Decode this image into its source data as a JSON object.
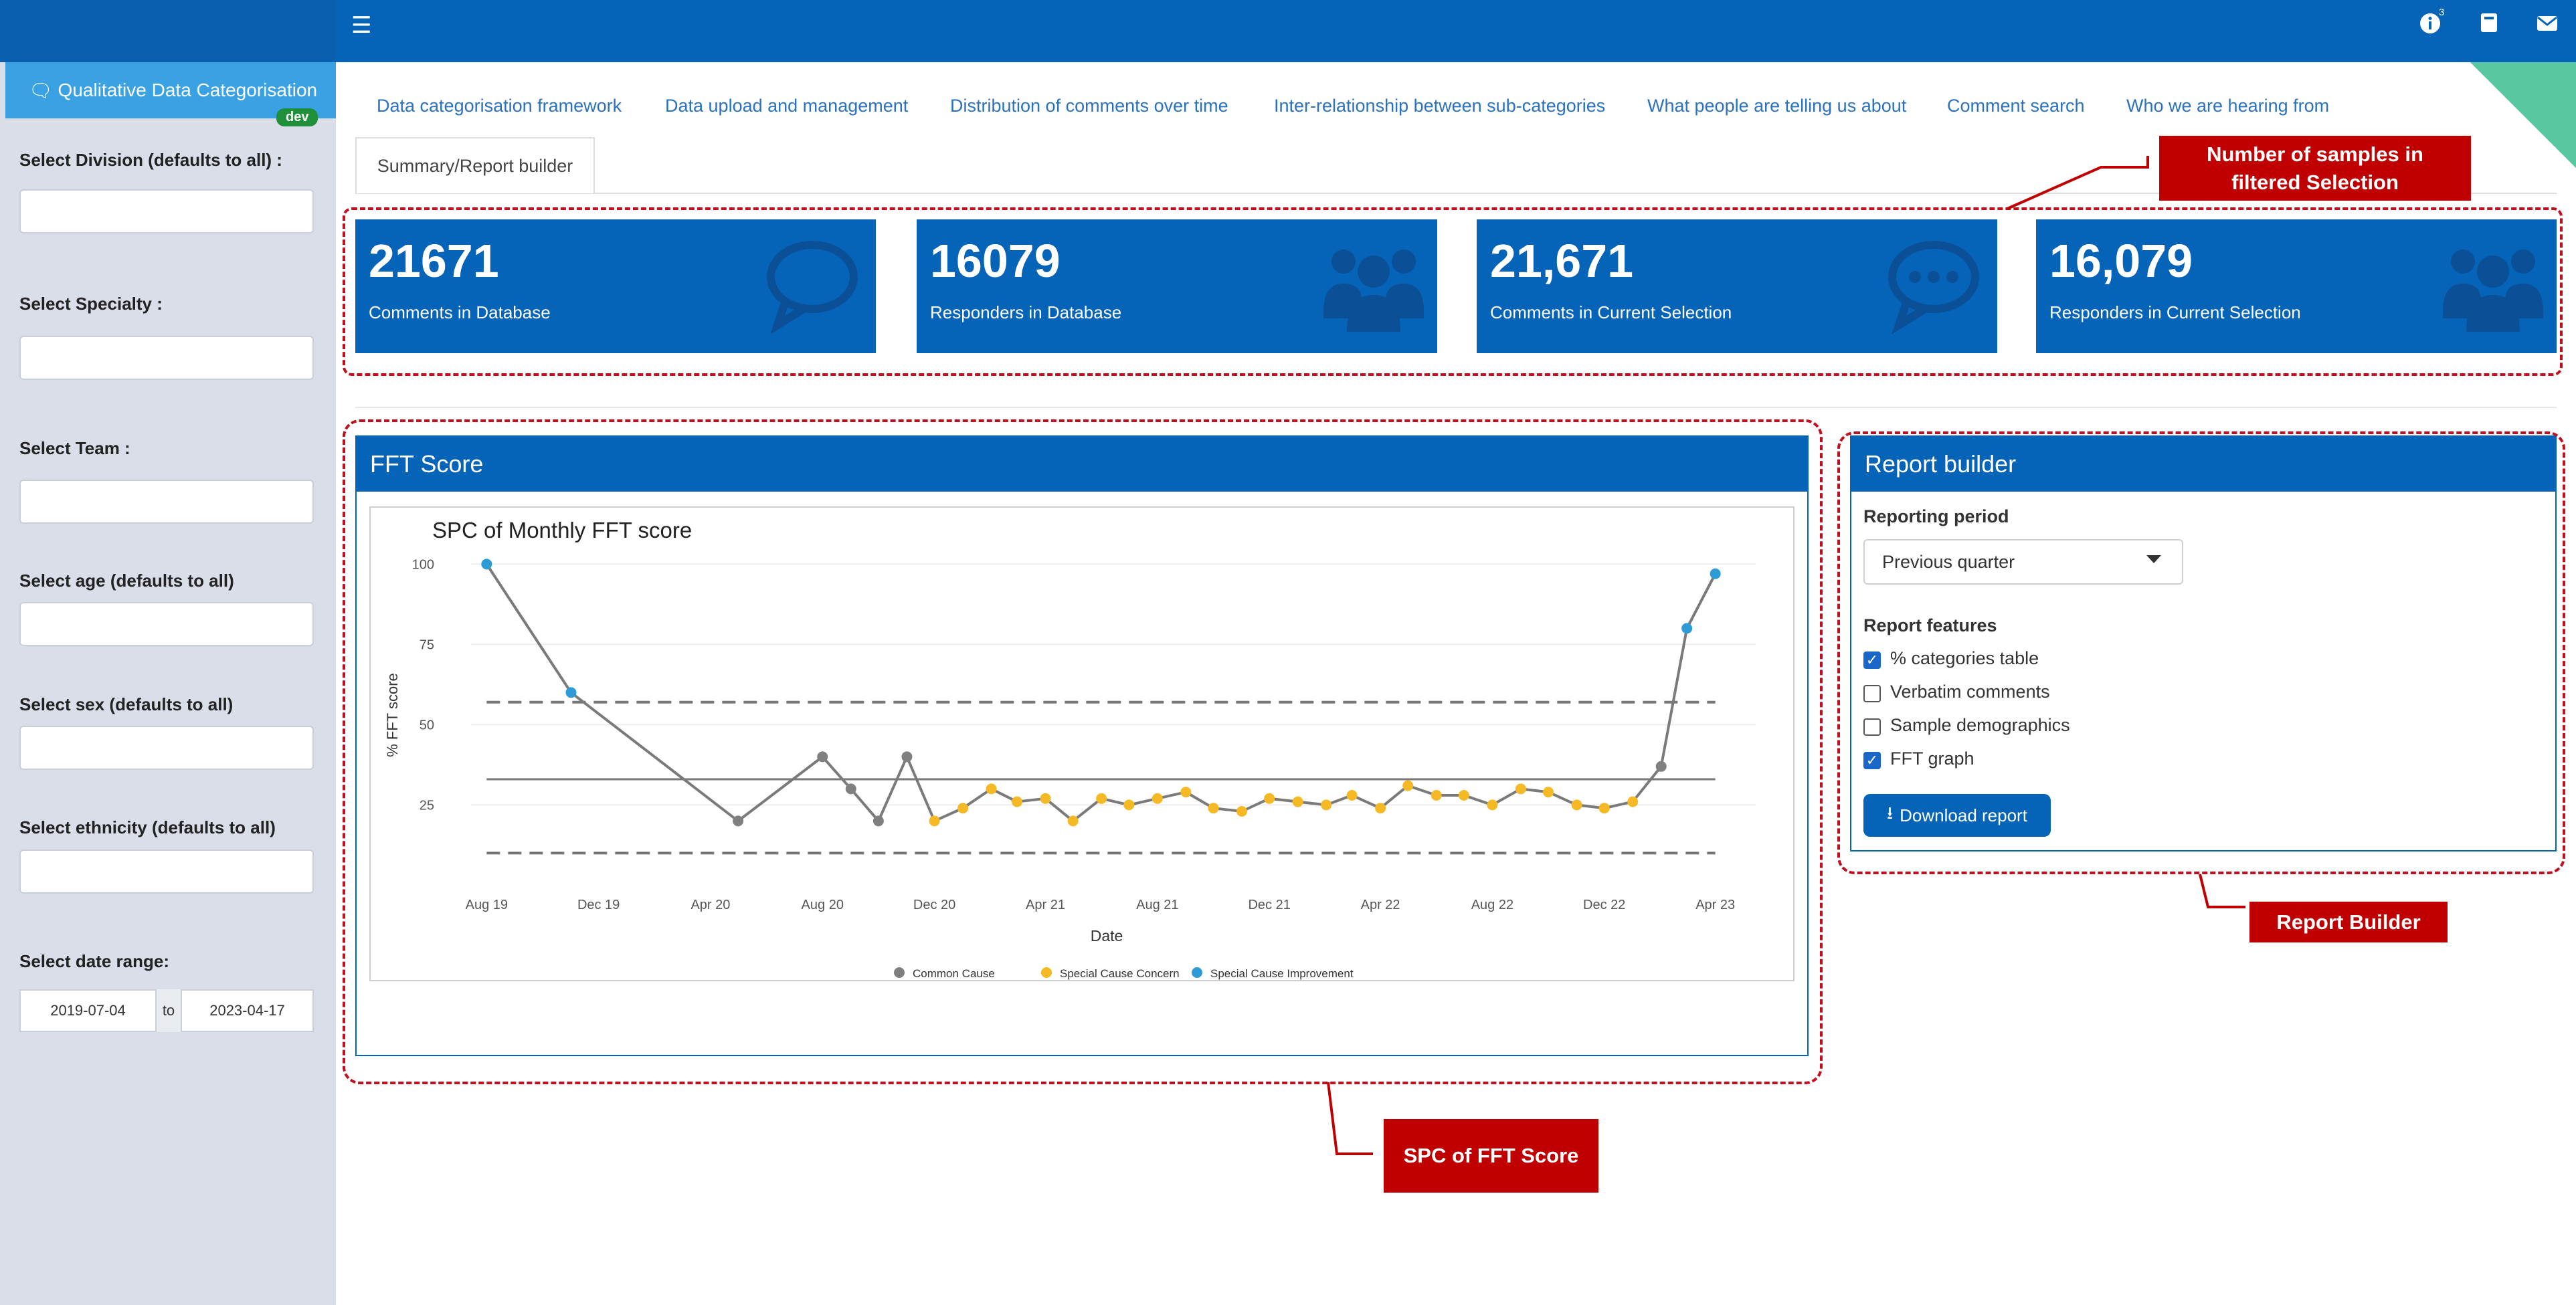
{
  "header": {
    "notification_count": "3"
  },
  "sidebar": {
    "app_title": "Qualitative Data Categorisation",
    "dev_badge": "dev",
    "filters": [
      {
        "label": "Select Division (defaults to all) :"
      },
      {
        "label": "Select Specialty :"
      },
      {
        "label": "Select Team :"
      },
      {
        "label": "Select age (defaults to all)"
      },
      {
        "label": "Select sex (defaults to all)"
      },
      {
        "label": "Select ethnicity (defaults to all)"
      }
    ],
    "date_range": {
      "label": "Select date range:",
      "start": "2019-07-04",
      "to": "to",
      "end": "2023-04-17"
    }
  },
  "tabs": [
    "Data categorisation framework",
    "Data upload and management",
    "Distribution of comments over time",
    "Inter-relationship between sub-categories",
    "What people are telling us about",
    "Comment search",
    "Who we are hearing from",
    "Summary/Report builder"
  ],
  "value_boxes": [
    {
      "value": "21671",
      "label": "Comments in Database",
      "icon": "comment-icon"
    },
    {
      "value": "16079",
      "label": "Responders in Database",
      "icon": "users-icon"
    },
    {
      "value": "21,671",
      "label": "Comments in Current Selection",
      "icon": "comment-dots-icon"
    },
    {
      "value": "16,079",
      "label": "Responders in Current Selection",
      "icon": "users-icon"
    }
  ],
  "fft_panel": {
    "title": "FFT Score"
  },
  "chart_data": {
    "type": "line",
    "title": "SPC of Monthly FFT score",
    "xlabel": "Date",
    "ylabel": "% FFT score",
    "x_ticks": [
      "Aug 19",
      "Dec 19",
      "Apr 20",
      "Aug 20",
      "Dec 20",
      "Apr 21",
      "Aug 21",
      "Dec 21",
      "Apr 22",
      "Aug 22",
      "Dec 22",
      "Apr 23"
    ],
    "y_ticks": [
      25,
      50,
      75,
      100
    ],
    "ylim": [
      3,
      103
    ],
    "center_line": 33,
    "upper_limit": 57,
    "lower_limit": 10,
    "legend": [
      "Common Cause",
      "Special Cause Concern",
      "Special Cause Improvement"
    ],
    "colors": {
      "common": "#808080",
      "concern": "#f5b925",
      "improvement": "#2e9bd6",
      "line": "#7a7a7a"
    },
    "points": [
      {
        "date": "2019-08",
        "y": 100,
        "class": "improvement"
      },
      {
        "date": "2019-11",
        "y": 60,
        "class": "improvement"
      },
      {
        "date": "2020-05",
        "y": 20,
        "class": "common"
      },
      {
        "date": "2020-08",
        "y": 40,
        "class": "common"
      },
      {
        "date": "2020-09",
        "y": 30,
        "class": "common"
      },
      {
        "date": "2020-10",
        "y": 20,
        "class": "common"
      },
      {
        "date": "2020-11",
        "y": 40,
        "class": "common"
      },
      {
        "date": "2020-12",
        "y": 20,
        "class": "concern"
      },
      {
        "date": "2021-01",
        "y": 24,
        "class": "concern"
      },
      {
        "date": "2021-02",
        "y": 30,
        "class": "concern"
      },
      {
        "date": "2021-03",
        "y": 26,
        "class": "concern"
      },
      {
        "date": "2021-04",
        "y": 27,
        "class": "concern"
      },
      {
        "date": "2021-05",
        "y": 20,
        "class": "concern"
      },
      {
        "date": "2021-06",
        "y": 27,
        "class": "concern"
      },
      {
        "date": "2021-07",
        "y": 25,
        "class": "concern"
      },
      {
        "date": "2021-08",
        "y": 27,
        "class": "concern"
      },
      {
        "date": "2021-09",
        "y": 29,
        "class": "concern"
      },
      {
        "date": "2021-10",
        "y": 24,
        "class": "concern"
      },
      {
        "date": "2021-11",
        "y": 23,
        "class": "concern"
      },
      {
        "date": "2021-12",
        "y": 27,
        "class": "concern"
      },
      {
        "date": "2022-01",
        "y": 26,
        "class": "concern"
      },
      {
        "date": "2022-02",
        "y": 25,
        "class": "concern"
      },
      {
        "date": "2022-03",
        "y": 28,
        "class": "concern"
      },
      {
        "date": "2022-04",
        "y": 24,
        "class": "concern"
      },
      {
        "date": "2022-05",
        "y": 31,
        "class": "concern"
      },
      {
        "date": "2022-06",
        "y": 28,
        "class": "concern"
      },
      {
        "date": "2022-07",
        "y": 28,
        "class": "concern"
      },
      {
        "date": "2022-08",
        "y": 25,
        "class": "concern"
      },
      {
        "date": "2022-09",
        "y": 30,
        "class": "concern"
      },
      {
        "date": "2022-10",
        "y": 29,
        "class": "concern"
      },
      {
        "date": "2022-11",
        "y": 25,
        "class": "concern"
      },
      {
        "date": "2022-12",
        "y": 24,
        "class": "concern"
      },
      {
        "date": "2023-01",
        "y": 26,
        "class": "concern"
      },
      {
        "date": "2023-02",
        "y": 37,
        "class": "common"
      },
      {
        "date": "2023-03",
        "y": 80,
        "class": "improvement"
      },
      {
        "date": "2023-04",
        "y": 97,
        "class": "improvement"
      }
    ]
  },
  "report_builder": {
    "title": "Report builder",
    "period_label": "Reporting period",
    "period_value": "Previous quarter",
    "features_label": "Report features",
    "features": [
      {
        "label": "% categories table",
        "checked": true
      },
      {
        "label": "Verbatim comments",
        "checked": false
      },
      {
        "label": "Sample demographics",
        "checked": false
      },
      {
        "label": "FFT graph",
        "checked": true
      }
    ],
    "download_label": "Download report"
  },
  "annotations": {
    "samples_line1": "Number of samples in",
    "samples_line2": "filtered Selection",
    "report_builder": "Report Builder",
    "spc": "SPC of FFT Score",
    "color": "#c00000"
  }
}
